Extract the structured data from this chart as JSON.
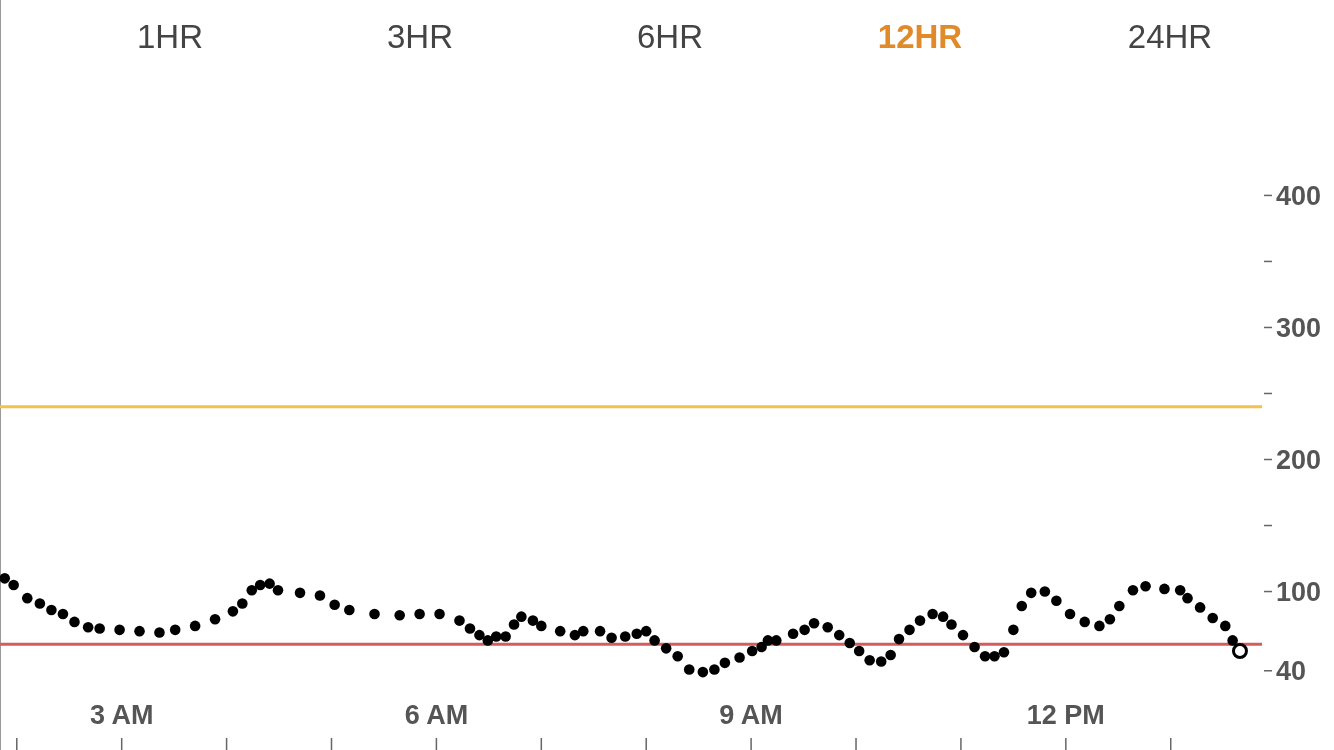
{
  "chart_data": {
    "type": "scatter",
    "marker": "circle",
    "grid": false,
    "annotations": [
      "1HR",
      "3HR",
      "6HR",
      "12HR",
      "24HR"
    ],
    "xlim": [
      1.84,
      13.87
    ],
    "xticks": [
      {
        "value": 2,
        "label": null
      },
      {
        "value": 3,
        "label": "3 AM"
      },
      {
        "value": 4,
        "label": null
      },
      {
        "value": 5,
        "label": null
      },
      {
        "value": 6,
        "label": "6 AM"
      },
      {
        "value": 7,
        "label": null
      },
      {
        "value": 8,
        "label": null
      },
      {
        "value": 9,
        "label": "9 AM"
      },
      {
        "value": 10,
        "label": null
      },
      {
        "value": 11,
        "label": null
      },
      {
        "value": 12,
        "label": "12 PM"
      },
      {
        "value": 13,
        "label": null
      }
    ],
    "ylim": [
      -20,
      548
    ],
    "yticks": [
      40,
      100,
      {
        "value": 150,
        "label": null
      },
      200,
      {
        "value": 250,
        "label": null
      },
      300,
      {
        "value": 350,
        "label": null
      },
      400
    ],
    "ref_lines": [
      {
        "axis": "y",
        "value": 240,
        "color": "#f2c24a"
      },
      {
        "axis": "y",
        "value": 60,
        "color": "#d45c5c"
      }
    ],
    "series": [
      {
        "color": "#000000",
        "x": [
          1.885,
          1.97,
          2.1,
          2.22,
          2.33,
          2.44,
          2.55,
          2.68,
          2.79,
          2.98,
          3.17,
          3.36,
          3.51,
          3.7,
          3.89,
          4.06,
          4.15,
          4.24,
          4.32,
          4.41,
          4.49,
          4.7,
          4.89,
          5.03,
          5.17,
          5.41,
          5.65,
          5.84,
          6.03,
          6.22,
          6.32,
          6.41,
          6.49,
          6.57,
          6.66,
          6.74,
          6.81,
          6.92,
          7.0,
          7.18,
          7.32,
          7.4,
          7.56,
          7.67,
          7.8,
          7.91,
          8.0,
          8.08,
          8.19,
          8.3,
          8.41,
          8.54,
          8.65,
          8.75,
          8.89,
          9.01,
          9.1,
          9.16,
          9.24,
          9.4,
          9.51,
          9.6,
          9.73,
          9.84,
          9.94,
          10.03,
          10.13,
          10.24,
          10.33,
          10.41,
          10.51,
          10.61,
          10.73,
          10.83,
          10.91,
          11.02,
          11.13,
          11.23,
          11.32,
          11.41,
          11.5,
          11.58,
          11.67,
          11.8,
          11.91,
          12.04,
          12.18,
          12.32,
          12.42,
          12.51,
          12.64,
          12.76,
          12.94,
          13.09,
          13.16,
          13.28,
          13.4,
          13.52,
          13.59,
          13.66
        ],
        "values": [
          110,
          105,
          95,
          91,
          86,
          83,
          77,
          73,
          72,
          71,
          70,
          69,
          71,
          74,
          79,
          85,
          91,
          101,
          105,
          106,
          101,
          99,
          97,
          90,
          86,
          83,
          82,
          83,
          83,
          78,
          72,
          67,
          63,
          66,
          66,
          75,
          81,
          78,
          74,
          70,
          67,
          70,
          70,
          65,
          66,
          68,
          70,
          63,
          57,
          51,
          41,
          39,
          41,
          46,
          50,
          55,
          58,
          63,
          63,
          68,
          71,
          76,
          73,
          67,
          61,
          55,
          48,
          47,
          52,
          64,
          71,
          78,
          83,
          81,
          75,
          67,
          58,
          51,
          51,
          54,
          71,
          89,
          99,
          100,
          93,
          83,
          77,
          74,
          79,
          89,
          101,
          104,
          102,
          101,
          95,
          88,
          80,
          74,
          63,
          55
        ]
      }
    ]
  }
}
